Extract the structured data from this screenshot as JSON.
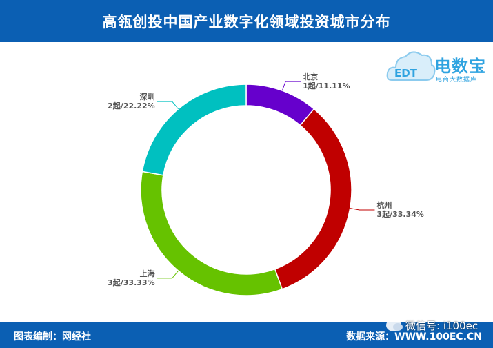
{
  "header": {
    "title": "高瓴创投中国产业数字化领域投资城市分布"
  },
  "logo": {
    "brand": "电数宝",
    "sub": "电商大数据库",
    "mark": "EDT"
  },
  "footer": {
    "left": "图表编制：网经社",
    "right": "数据来源：WWW.100EC.CN"
  },
  "watermark": {
    "text": "微信号: i100ec"
  },
  "chart_data": {
    "type": "pie",
    "donut": true,
    "title": "高瓴创投中国产业数字化领域投资城市分布",
    "slices": [
      {
        "name": "北京",
        "label": "1起/11.11%",
        "count": 1,
        "percent": 11.11,
        "color": "#6600cc"
      },
      {
        "name": "杭州",
        "label": "3起/33.34%",
        "count": 3,
        "percent": 33.34,
        "color": "#c00000"
      },
      {
        "name": "上海",
        "label": "3起/33.33%",
        "count": 3,
        "percent": 33.33,
        "color": "#66c200"
      },
      {
        "name": "深圳",
        "label": "2起/22.22%",
        "count": 2,
        "percent": 22.22,
        "color": "#00c0c0"
      }
    ]
  }
}
